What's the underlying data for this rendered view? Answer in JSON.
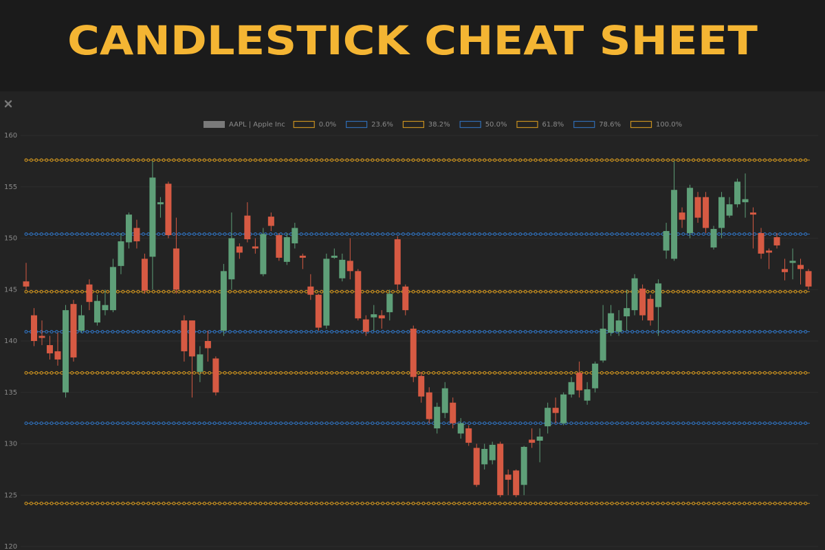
{
  "chart_data": {
    "type": "candlestick",
    "title": "CANDLESTICK CHEAT SHEET",
    "ylim": [
      120,
      160
    ],
    "yticks": [
      120,
      125,
      130,
      135,
      140,
      145,
      150,
      155,
      160
    ],
    "grid": true,
    "series": [
      {
        "name": "AAPL | Apple Inc",
        "color": "#7a7a7a",
        "up_color": "#5e9f78",
        "down_color": "#d65a43",
        "open": [
          145.8,
          142.5,
          140.5,
          139.6,
          139.0,
          135.0,
          143.6,
          141.0,
          145.5,
          141.8,
          143.0,
          143.0,
          147.3,
          149.6,
          151.0,
          148.0,
          148.2,
          153.3,
          155.3,
          149.0,
          142.0,
          142.0,
          137.0,
          140.0,
          138.3,
          141.0,
          146.0,
          149.2,
          152.2,
          149.2,
          146.5,
          152.1,
          150.3,
          147.7,
          149.5,
          148.3,
          145.3,
          144.5,
          141.5,
          148.1,
          146.1,
          147.8,
          146.8,
          142.1,
          142.3,
          142.5,
          142.8,
          149.9,
          145.3,
          141.2,
          136.6,
          135.0,
          131.5,
          133.0,
          134.0,
          131.0,
          131.5,
          129.6,
          128.0,
          128.4,
          130.0,
          127.0,
          127.4,
          126.0,
          130.4,
          130.3,
          131.7,
          133.5,
          132.0,
          134.8,
          136.9,
          134.2,
          135.4,
          138.1,
          140.8,
          140.9,
          142.4,
          143.0,
          145.1,
          144.1,
          143.3,
          148.8,
          148.0,
          152.5,
          150.5,
          154.0,
          154.0,
          149.1,
          151.0,
          152.2,
          153.3,
          153.5,
          152.5,
          150.5,
          148.8,
          150.1,
          147.0,
          147.6,
          147.4,
          146.8
        ],
        "high": [
          147.6,
          143.2,
          142.0,
          140.5,
          140.8,
          143.5,
          144.0,
          143.5,
          146.0,
          144.5,
          145.0,
          148.0,
          150.5,
          152.5,
          151.8,
          148.5,
          157.5,
          154.0,
          155.5,
          152.0,
          142.5,
          142.0,
          139.5,
          141.0,
          138.5,
          147.5,
          152.5,
          149.5,
          153.5,
          150.0,
          151.0,
          152.5,
          150.5,
          150.5,
          151.5,
          148.5,
          146.5,
          144.6,
          148.5,
          149.0,
          148.5,
          150.0,
          147.0,
          142.5,
          143.5,
          143.0,
          145.0,
          150.2,
          145.5,
          141.5,
          137.0,
          135.5,
          134.0,
          136.0,
          134.5,
          132.5,
          131.8,
          130.0,
          130.0,
          130.2,
          130.2,
          127.5,
          127.5,
          129.8,
          131.5,
          131.5,
          134.0,
          134.5,
          135.0,
          136.5,
          138.0,
          136.0,
          138.0,
          143.5,
          143.5,
          143.0,
          145.0,
          146.5,
          145.5,
          144.5,
          146.0,
          151.5,
          157.5,
          153.0,
          155.2,
          154.5,
          154.5,
          151.2,
          154.5,
          154.0,
          155.8,
          156.3,
          153.0,
          151.0,
          149.0,
          150.5,
          148.0,
          149.0,
          148.0,
          147.0
        ],
        "low": [
          145.0,
          139.5,
          139.6,
          138.2,
          137.6,
          134.5,
          138.0,
          140.8,
          143.0,
          141.5,
          142.5,
          142.8,
          146.5,
          149.0,
          149.0,
          144.6,
          145.0,
          152.0,
          150.0,
          144.6,
          138.0,
          134.5,
          136.0,
          138.0,
          134.7,
          140.5,
          145.0,
          148.0,
          149.6,
          148.5,
          146.3,
          150.7,
          147.8,
          147.4,
          149.0,
          147.0,
          144.0,
          141.0,
          141.2,
          148.0,
          145.8,
          146.0,
          142.0,
          140.5,
          141.0,
          141.2,
          142.0,
          145.0,
          142.5,
          136.0,
          134.0,
          132.0,
          131.0,
          132.5,
          131.5,
          130.5,
          129.8,
          125.8,
          127.5,
          128.0,
          124.8,
          125.0,
          124.8,
          125.0,
          129.6,
          128.2,
          131.0,
          132.0,
          131.8,
          134.5,
          134.5,
          133.8,
          135.0,
          137.9,
          140.5,
          140.5,
          141.0,
          142.5,
          142.0,
          141.5,
          140.5,
          148.0,
          147.8,
          151.0,
          150.0,
          151.5,
          150.5,
          148.9,
          150.0,
          152.0,
          153.0,
          152.0,
          149.0,
          148.0,
          147.0,
          149.0,
          145.9,
          146.0,
          145.5,
          145.0
        ],
        "close": [
          145.3,
          140.0,
          140.3,
          138.8,
          138.2,
          143.0,
          138.4,
          142.5,
          143.8,
          143.9,
          143.5,
          147.2,
          149.7,
          152.3,
          149.7,
          144.9,
          155.9,
          153.5,
          150.3,
          145.0,
          139.0,
          138.5,
          138.7,
          139.3,
          135.0,
          146.8,
          150.0,
          148.6,
          149.9,
          149.0,
          150.4,
          151.2,
          148.1,
          150.1,
          151.0,
          148.1,
          144.5,
          141.3,
          148.0,
          148.3,
          147.9,
          146.8,
          142.2,
          140.9,
          142.6,
          142.2,
          144.6,
          145.5,
          143.0,
          136.5,
          134.6,
          132.4,
          133.6,
          135.4,
          132.0,
          132.0,
          130.1,
          126.0,
          129.5,
          129.9,
          125.0,
          126.5,
          125.0,
          129.7,
          130.1,
          130.7,
          133.5,
          133.0,
          134.8,
          136.0,
          135.2,
          135.3,
          137.8,
          141.2,
          142.7,
          142.0,
          143.2,
          146.1,
          142.5,
          142.0,
          145.6,
          150.7,
          154.7,
          151.8,
          154.9,
          152.0,
          151.0,
          150.9,
          154.0,
          153.3,
          155.5,
          153.8,
          152.3,
          148.5,
          148.6,
          149.3,
          146.7,
          147.8,
          147.0,
          145.3
        ]
      }
    ],
    "fib_levels": [
      {
        "name": "0.0%",
        "value": 157.6,
        "color": "#c8901f"
      },
      {
        "name": "23.6%",
        "value": 150.4,
        "color": "#2f6db5"
      },
      {
        "name": "38.2%",
        "value": 144.8,
        "color": "#c8901f"
      },
      {
        "name": "50.0%",
        "value": 140.9,
        "color": "#2f6db5"
      },
      {
        "name": "61.8%",
        "value": 136.9,
        "color": "#c8901f"
      },
      {
        "name": "78.6%",
        "value": 132.0,
        "color": "#2f6db5"
      },
      {
        "name": "100.0%",
        "value": 124.2,
        "color": "#c8901f"
      }
    ]
  }
}
